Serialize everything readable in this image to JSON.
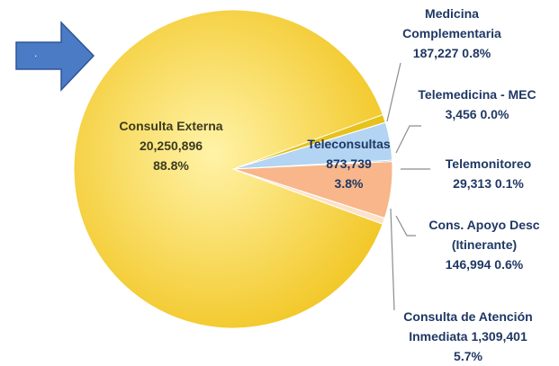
{
  "chart_data": {
    "type": "pie",
    "arrow_text": ".",
    "categories": [
      "Medicina Complementaria",
      "Telemedicina - MEC",
      "Teleconsultas",
      "Telemonitoreo",
      "Consulta de Atención Inmediata",
      "Cons. Apoyo Desc (Itinerante)",
      "Consulta Externa"
    ],
    "values": [
      187227,
      3456,
      873739,
      29313,
      1309401,
      146994,
      20250896
    ],
    "value_labels": [
      "187,227",
      "3,456",
      "873,739",
      "29,313",
      "1,309,401",
      "146,994",
      "20,250,896"
    ],
    "percents": [
      0.8,
      0.0,
      3.8,
      0.1,
      5.7,
      0.6,
      88.8
    ],
    "percent_labels": [
      "0.8%",
      "0.0%",
      "3.8%",
      "0.1%",
      "5.7%",
      "0.6%",
      "88.8%"
    ],
    "colors": [
      "#e6c21a",
      "#9a9a9a",
      "#b3d4f2",
      "#4f8fd0",
      "#f8b68a",
      "#fde2c8",
      "#fbd54e"
    ]
  }
}
